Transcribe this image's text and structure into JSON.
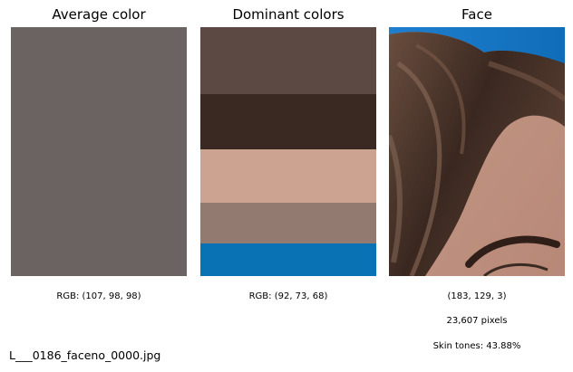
{
  "panels": {
    "average": {
      "title": "Average color",
      "caption": "RGB: (107, 98, 98)",
      "color": "#6b6262"
    },
    "dominant": {
      "title": "Dominant colors",
      "caption": "RGB: (92, 73, 68)",
      "bands": [
        {
          "color": "#5c4944",
          "share": 0.27
        },
        {
          "color": "#3a2823",
          "share": 0.22
        },
        {
          "color": "#cca290",
          "share": 0.215
        },
        {
          "color": "#937a70",
          "share": 0.165
        },
        {
          "color": "#0872b5",
          "share": 0.13
        }
      ]
    },
    "face": {
      "title": "Face",
      "rgb": "(183, 129, 3)",
      "pixels": "23,607 pixels",
      "skin_tones": "Skin tones: 43.88%"
    }
  },
  "filename": "L___0186_faceno_0000.jpg"
}
